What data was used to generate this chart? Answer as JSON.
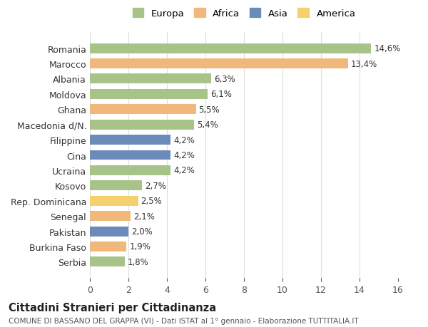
{
  "countries": [
    "Serbia",
    "Burkina Faso",
    "Pakistan",
    "Senegal",
    "Rep. Dominicana",
    "Kosovo",
    "Ucraina",
    "Cina",
    "Filippine",
    "Macedonia d/N.",
    "Ghana",
    "Moldova",
    "Albania",
    "Marocco",
    "Romania"
  ],
  "values": [
    1.8,
    1.9,
    2.0,
    2.1,
    2.5,
    2.7,
    4.2,
    4.2,
    4.2,
    5.4,
    5.5,
    6.1,
    6.3,
    13.4,
    14.6
  ],
  "labels": [
    "1,8%",
    "1,9%",
    "2,0%",
    "2,1%",
    "2,5%",
    "2,7%",
    "4,2%",
    "4,2%",
    "4,2%",
    "5,4%",
    "5,5%",
    "6,1%",
    "6,3%",
    "13,4%",
    "14,6%"
  ],
  "continents": [
    "Europa",
    "Africa",
    "Asia",
    "Africa",
    "America",
    "Europa",
    "Europa",
    "Asia",
    "Asia",
    "Europa",
    "Africa",
    "Europa",
    "Europa",
    "Africa",
    "Europa"
  ],
  "continent_colors": {
    "Europa": "#a8c387",
    "Africa": "#f0b87a",
    "Asia": "#6b8cba",
    "America": "#f5d06e"
  },
  "legend_order": [
    "Europa",
    "Africa",
    "Asia",
    "America"
  ],
  "bg_color": "#ffffff",
  "grid_color": "#dddddd",
  "xlim": [
    0,
    16
  ],
  "xticks": [
    0,
    2,
    4,
    6,
    8,
    10,
    12,
    14,
    16
  ],
  "title": "Cittadini Stranieri per Cittadinanza",
  "subtitle": "COMUNE DI BASSANO DEL GRAPPA (VI) - Dati ISTAT al 1° gennaio - Elaborazione TUTTITALIA.IT"
}
